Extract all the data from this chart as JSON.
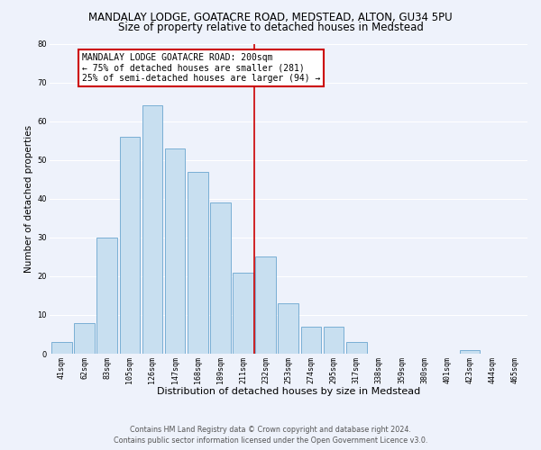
{
  "title": "MANDALAY LODGE, GOATACRE ROAD, MEDSTEAD, ALTON, GU34 5PU",
  "subtitle": "Size of property relative to detached houses in Medstead",
  "xlabel": "Distribution of detached houses by size in Medstead",
  "ylabel": "Number of detached properties",
  "bin_labels": [
    "41sqm",
    "62sqm",
    "83sqm",
    "105sqm",
    "126sqm",
    "147sqm",
    "168sqm",
    "189sqm",
    "211sqm",
    "232sqm",
    "253sqm",
    "274sqm",
    "295sqm",
    "317sqm",
    "338sqm",
    "359sqm",
    "380sqm",
    "401sqm",
    "423sqm",
    "444sqm",
    "465sqm"
  ],
  "bar_values": [
    3,
    8,
    30,
    56,
    64,
    53,
    47,
    39,
    21,
    25,
    13,
    7,
    7,
    3,
    0,
    0,
    0,
    0,
    1,
    0,
    0
  ],
  "bar_color": "#c8dff0",
  "bar_edge_color": "#7aafd4",
  "vline_x_idx": 8.5,
  "vline_color": "#cc0000",
  "annotation_line1": "MANDALAY LODGE GOATACRE ROAD: 200sqm",
  "annotation_line2": "← 75% of detached houses are smaller (281)",
  "annotation_line3": "25% of semi-detached houses are larger (94) →",
  "ylim": [
    0,
    80
  ],
  "yticks": [
    0,
    10,
    20,
    30,
    40,
    50,
    60,
    70,
    80
  ],
  "background_color": "#eef2fb",
  "grid_color": "#ffffff",
  "footer_line1": "Contains HM Land Registry data © Crown copyright and database right 2024.",
  "footer_line2": "Contains public sector information licensed under the Open Government Licence v3.0.",
  "title_fontsize": 8.5,
  "subtitle_fontsize": 8.5,
  "ylabel_fontsize": 7.5,
  "xlabel_fontsize": 8,
  "tick_fontsize": 6,
  "annotation_fontsize": 7,
  "footer_fontsize": 5.8
}
